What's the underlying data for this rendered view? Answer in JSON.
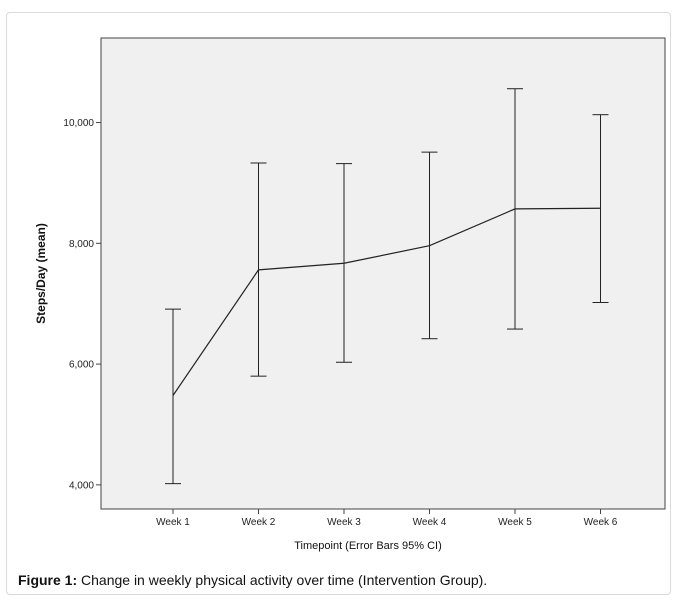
{
  "figure": {
    "caption_label": "Figure 1:",
    "caption_text": " Change in weekly physical activity over time (Intervention Group)."
  },
  "chart_data": {
    "type": "line",
    "title": "",
    "xlabel": "Timepoint (Error Bars 95% CI)",
    "ylabel": "Steps/Day (mean)",
    "categories": [
      "Week 1",
      "Week 2",
      "Week 3",
      "Week 4",
      "Week 5",
      "Week 6"
    ],
    "series": [
      {
        "values": [
          5480,
          7560,
          7670,
          7960,
          8570,
          8580
        ],
        "ci_lower": [
          4020,
          5800,
          6030,
          6420,
          6580,
          7020
        ],
        "ci_upper": [
          6910,
          9330,
          9320,
          9510,
          10560,
          10130
        ]
      }
    ],
    "yticks": [
      4000,
      6000,
      8000,
      10000
    ],
    "ytick_labels": [
      "4,000",
      "6,000",
      "8,000",
      "10,000"
    ],
    "ylim": [
      3600,
      11400
    ],
    "grid": false,
    "error_bars": "95% CI"
  }
}
